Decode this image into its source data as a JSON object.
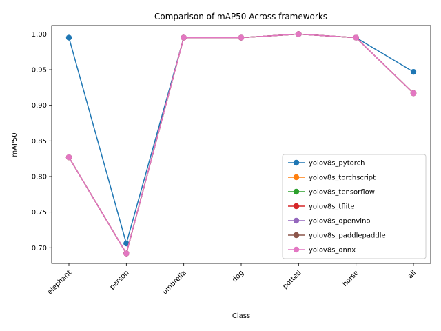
{
  "chart_data": {
    "type": "line",
    "title": "Comparison of mAP50 Across frameworks",
    "xlabel": "Class",
    "ylabel": "mAP50",
    "categories": [
      "elephant",
      "person",
      "umbrella",
      "dog",
      "potted",
      "horse",
      "all"
    ],
    "ylim": [
      0.678,
      1.012
    ],
    "yticks": [
      "0.70",
      "0.75",
      "0.80",
      "0.85",
      "0.90",
      "0.95",
      "1.00"
    ],
    "grid": false,
    "legend_position": "lower-right",
    "series": [
      {
        "name": "yolov8s_pytorch",
        "color": "#1f77b4",
        "values": [
          0.995,
          0.706,
          0.995,
          0.995,
          1.0,
          0.995,
          0.947
        ]
      },
      {
        "name": "yolov8s_torchscript",
        "color": "#ff7f0e",
        "values": [
          0.827,
          0.692,
          0.995,
          0.995,
          1.0,
          0.995,
          0.917
        ]
      },
      {
        "name": "yolov8s_tensorflow",
        "color": "#2ca02c",
        "values": [
          0.827,
          0.692,
          0.995,
          0.995,
          1.0,
          0.995,
          0.917
        ]
      },
      {
        "name": "yolov8s_tflite",
        "color": "#d62728",
        "values": [
          0.827,
          0.692,
          0.995,
          0.995,
          1.0,
          0.995,
          0.917
        ]
      },
      {
        "name": "yolov8s_openvino",
        "color": "#9467bd",
        "values": [
          0.827,
          0.692,
          0.995,
          0.995,
          1.0,
          0.995,
          0.917
        ]
      },
      {
        "name": "yolov8s_paddlepaddle",
        "color": "#8c564b",
        "values": [
          0.827,
          0.692,
          0.995,
          0.995,
          1.0,
          0.995,
          0.917
        ]
      },
      {
        "name": "yolov8s_onnx",
        "color": "#e377c2",
        "values": [
          0.827,
          0.692,
          0.995,
          0.995,
          1.0,
          0.995,
          0.917
        ]
      }
    ]
  }
}
